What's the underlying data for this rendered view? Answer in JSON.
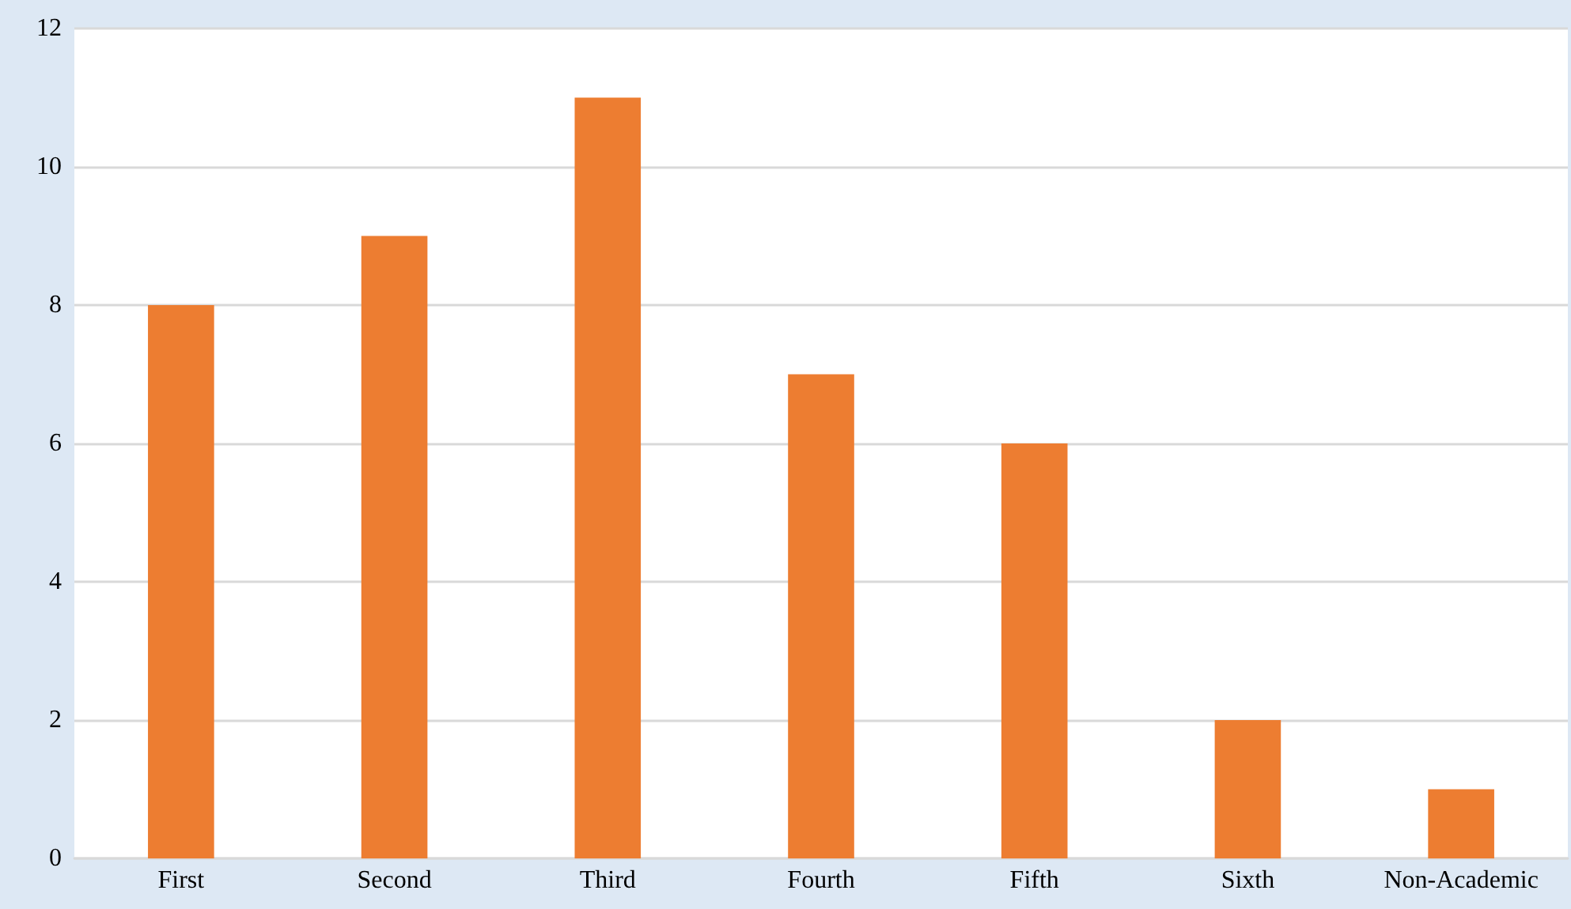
{
  "chart_data": {
    "type": "bar",
    "categories": [
      "First",
      "Second",
      "Third",
      "Fourth",
      "Fifth",
      "Sixth",
      "Non-Academic"
    ],
    "values": [
      8,
      9,
      11,
      7,
      6,
      2,
      1
    ],
    "color": "#ed7d31",
    "ylim": [
      0,
      12
    ],
    "yticks": [
      0,
      2,
      4,
      6,
      8,
      10,
      12
    ],
    "grid": "y"
  }
}
